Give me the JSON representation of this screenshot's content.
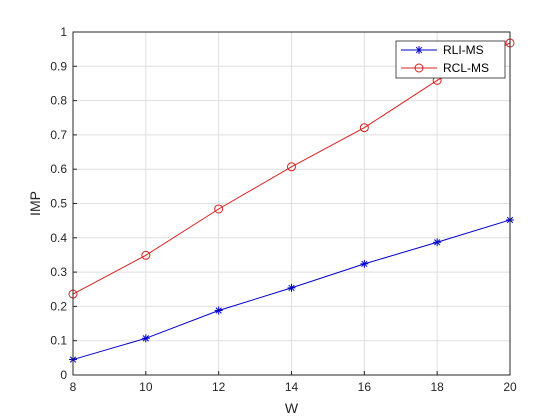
{
  "chart_data": {
    "type": "line",
    "title": "",
    "xlabel": "W",
    "ylabel": "IMP",
    "x": [
      8,
      10,
      12,
      14,
      16,
      18,
      20
    ],
    "xlim": [
      8,
      20
    ],
    "ylim": [
      0,
      1
    ],
    "x_ticks": [
      8,
      10,
      12,
      14,
      16,
      18,
      20
    ],
    "y_ticks": [
      0,
      0.1,
      0.2,
      0.3,
      0.4,
      0.5,
      0.6,
      0.7,
      0.8,
      0.9,
      1
    ],
    "grid": true,
    "legend_position": "top-right",
    "series": [
      {
        "name": "RLI-MS",
        "color": "#0000c8",
        "marker": "asterisk",
        "values": [
          0.045,
          0.107,
          0.188,
          0.254,
          0.324,
          0.387,
          0.452
        ]
      },
      {
        "name": "RCL-MS",
        "color": "#d62020",
        "marker": "circle",
        "values": [
          0.236,
          0.349,
          0.484,
          0.607,
          0.721,
          0.859,
          0.968
        ]
      }
    ]
  }
}
